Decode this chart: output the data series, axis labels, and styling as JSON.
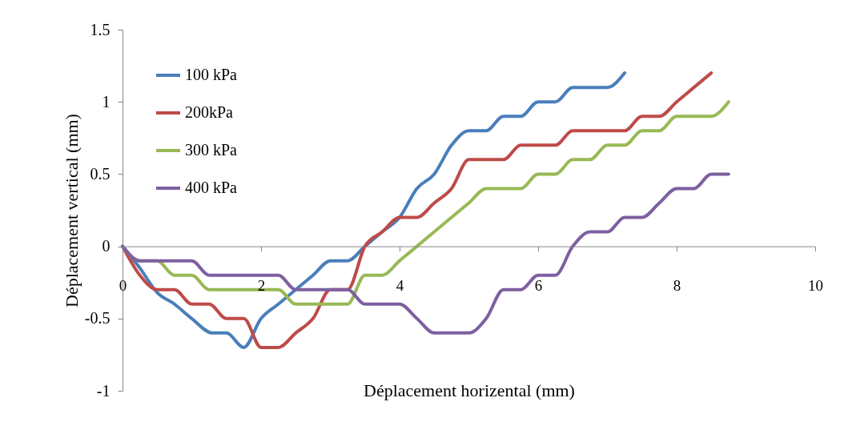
{
  "chart_data": {
    "type": "line",
    "xlabel": "Déplacement horizental (mm)",
    "ylabel": "Déplacement vertical (mm)",
    "xlim": [
      0,
      10
    ],
    "xticks": [
      0,
      2,
      4,
      6,
      8,
      10
    ],
    "ylim": [
      -1,
      1.5
    ],
    "yticks": [
      -1,
      -0.5,
      0,
      0.5,
      1,
      1.5
    ],
    "grid": false,
    "legend": "top left",
    "marker": "none",
    "line_style": "solid",
    "series": [
      {
        "name": "100 kPa",
        "color": "#4a7ebb",
        "x": [
          0,
          0.25,
          0.5,
          0.75,
          1,
          1.3,
          1.5,
          1.75,
          2,
          2.25,
          2.5,
          2.75,
          3,
          3.25,
          3.5,
          3.75,
          4,
          4.25,
          4.5,
          4.75,
          5,
          5.25,
          5.5,
          5.75,
          6,
          6.25,
          6.5,
          6.75,
          7,
          7.25
        ],
        "values": [
          0,
          -0.15,
          -0.32,
          -0.4,
          -0.5,
          -0.6,
          -0.6,
          -0.7,
          -0.5,
          -0.4,
          -0.3,
          -0.2,
          -0.1,
          -0.1,
          0,
          0.1,
          0.2,
          0.4,
          0.5,
          0.7,
          0.8,
          0.8,
          0.9,
          0.9,
          1,
          1,
          1.1,
          1.1,
          1.1,
          1.2
        ]
      },
      {
        "name": "200kPa",
        "color": "#be4b48",
        "x": [
          0,
          0.25,
          0.5,
          0.75,
          1,
          1.25,
          1.5,
          1.75,
          2,
          2.25,
          2.5,
          2.75,
          3,
          3.25,
          3.5,
          3.75,
          4,
          4.25,
          4.5,
          4.75,
          5,
          5.25,
          5.5,
          5.75,
          6,
          6.25,
          6.5,
          6.75,
          7,
          7.25,
          7.5,
          7.75,
          8,
          8.25,
          8.5
        ],
        "values": [
          0,
          -0.2,
          -0.3,
          -0.3,
          -0.4,
          -0.4,
          -0.5,
          -0.5,
          -0.7,
          -0.7,
          -0.6,
          -0.5,
          -0.3,
          -0.3,
          0,
          0.1,
          0.2,
          0.2,
          0.3,
          0.4,
          0.6,
          0.6,
          0.6,
          0.7,
          0.7,
          0.7,
          0.8,
          0.8,
          0.8,
          0.8,
          0.9,
          0.9,
          1,
          1.1,
          1.2
        ]
      },
      {
        "name": "300 kPa",
        "color": "#98b954",
        "x": [
          0,
          0.25,
          0.5,
          0.75,
          1,
          1.25,
          1.5,
          1.75,
          2,
          2.25,
          2.5,
          2.75,
          3,
          3.25,
          3.5,
          3.75,
          4,
          4.5,
          5,
          5.25,
          5.5,
          5.75,
          6,
          6.25,
          6.5,
          6.75,
          7,
          7.25,
          7.5,
          7.75,
          8,
          8.25,
          8.5,
          8.75
        ],
        "values": [
          0,
          -0.1,
          -0.1,
          -0.2,
          -0.2,
          -0.3,
          -0.3,
          -0.3,
          -0.3,
          -0.3,
          -0.4,
          -0.4,
          -0.4,
          -0.4,
          -0.2,
          -0.2,
          -0.1,
          0.1,
          0.3,
          0.4,
          0.4,
          0.4,
          0.5,
          0.5,
          0.6,
          0.6,
          0.7,
          0.7,
          0.8,
          0.8,
          0.9,
          0.9,
          0.9,
          1
        ]
      },
      {
        "name": "400 kPa",
        "color": "#7d60a0",
        "x": [
          0,
          0.25,
          0.5,
          0.75,
          1,
          1.25,
          1.5,
          1.75,
          2,
          2.25,
          2.5,
          2.75,
          3,
          3.25,
          3.5,
          3.75,
          4,
          4.25,
          4.5,
          4.75,
          5,
          5.25,
          5.5,
          5.75,
          6,
          6.25,
          6.5,
          6.75,
          7,
          7.25,
          7.5,
          7.75,
          8,
          8.25,
          8.5,
          8.75
        ],
        "values": [
          0,
          -0.1,
          -0.1,
          -0.1,
          -0.1,
          -0.2,
          -0.2,
          -0.2,
          -0.2,
          -0.2,
          -0.3,
          -0.3,
          -0.3,
          -0.3,
          -0.4,
          -0.4,
          -0.4,
          -0.5,
          -0.6,
          -0.6,
          -0.6,
          -0.5,
          -0.3,
          -0.3,
          -0.2,
          -0.2,
          0,
          0.1,
          0.1,
          0.2,
          0.2,
          0.3,
          0.4,
          0.4,
          0.5,
          0.5
        ]
      }
    ]
  }
}
